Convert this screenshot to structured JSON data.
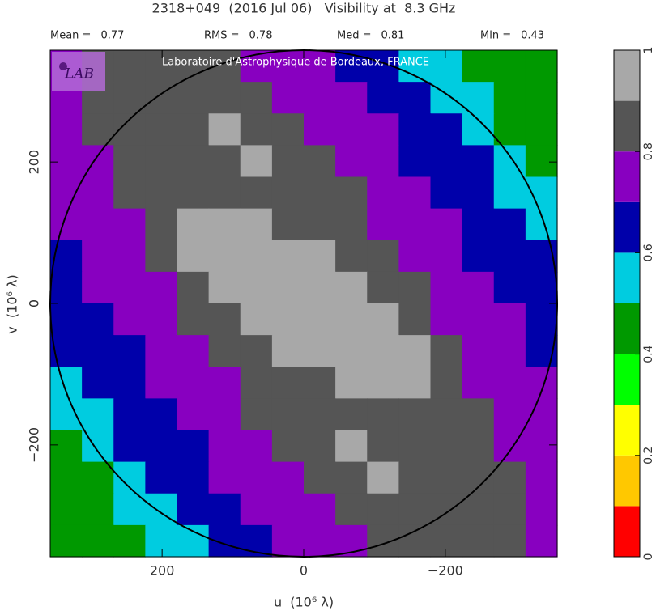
{
  "chart_data": {
    "type": "heatmap",
    "title": "2318+049  (2016 Jul 06)   Visibility at  8.3 GHz",
    "stats": [
      {
        "label": "Mean =",
        "value": 0.77
      },
      {
        "label": "RMS =",
        "value": 0.78
      },
      {
        "label": "Med =",
        "value": 0.81
      },
      {
        "label": "Min =",
        "value": 0.43
      }
    ],
    "watermark": "Laboratoire d'Astrophysique de Bordeaux, FRANCE",
    "logo_text": "LAB",
    "x_label": "u  (10⁶ λ)",
    "y_label": "v  (10⁶ λ)",
    "xlim": [
      358,
      -358
    ],
    "ylim": [
      -358,
      358
    ],
    "xticks": [
      200,
      0,
      {
        "value": -200,
        "label": "−200"
      }
    ],
    "yticks": [
      {
        "value": -200,
        "label": "−200"
      },
      0,
      200
    ],
    "levels": [
      0,
      0.1,
      0.2,
      0.3,
      0.4,
      0.5,
      0.6,
      0.7,
      0.8,
      0.9,
      1
    ],
    "colors": [
      "#ff0000",
      "#ffc800",
      "#ffff00",
      "#00ff00",
      "#009900",
      "#00cce0",
      "#0000aa",
      "#8800c0",
      "#555555",
      "#a8a8a8"
    ],
    "colorbar_ticks": [
      0,
      0.2,
      0.4,
      0.6,
      0.8,
      1
    ],
    "z": [
      [
        0.75,
        0.85,
        0.85,
        0.85,
        0.85,
        0.85,
        0.75,
        0.75,
        0.75,
        0.65,
        0.65,
        0.55,
        0.55,
        0.45,
        0.45,
        0.45
      ],
      [
        0.75,
        0.85,
        0.85,
        0.85,
        0.85,
        0.85,
        0.85,
        0.75,
        0.75,
        0.75,
        0.65,
        0.65,
        0.55,
        0.55,
        0.45,
        0.45
      ],
      [
        0.75,
        0.85,
        0.85,
        0.85,
        0.85,
        0.95,
        0.85,
        0.85,
        0.75,
        0.75,
        0.75,
        0.65,
        0.65,
        0.55,
        0.45,
        0.45
      ],
      [
        0.75,
        0.75,
        0.85,
        0.85,
        0.85,
        0.85,
        0.95,
        0.85,
        0.85,
        0.75,
        0.75,
        0.65,
        0.65,
        0.65,
        0.55,
        0.45
      ],
      [
        0.75,
        0.75,
        0.85,
        0.85,
        0.85,
        0.85,
        0.85,
        0.85,
        0.85,
        0.85,
        0.75,
        0.75,
        0.65,
        0.65,
        0.55,
        0.55
      ],
      [
        0.75,
        0.75,
        0.75,
        0.85,
        0.95,
        0.95,
        0.95,
        0.85,
        0.85,
        0.85,
        0.75,
        0.75,
        0.75,
        0.65,
        0.65,
        0.55
      ],
      [
        0.65,
        0.75,
        0.75,
        0.85,
        0.95,
        0.95,
        0.95,
        0.95,
        0.95,
        0.85,
        0.85,
        0.75,
        0.75,
        0.65,
        0.65,
        0.65
      ],
      [
        0.65,
        0.75,
        0.75,
        0.75,
        0.85,
        0.95,
        0.95,
        0.95,
        0.95,
        0.95,
        0.85,
        0.85,
        0.75,
        0.75,
        0.65,
        0.65
      ],
      [
        0.65,
        0.65,
        0.75,
        0.75,
        0.85,
        0.85,
        0.95,
        0.95,
        0.95,
        0.95,
        0.95,
        0.85,
        0.75,
        0.75,
        0.75,
        0.65
      ],
      [
        0.65,
        0.65,
        0.65,
        0.75,
        0.75,
        0.85,
        0.85,
        0.95,
        0.95,
        0.95,
        0.95,
        0.95,
        0.85,
        0.75,
        0.75,
        0.65
      ],
      [
        0.55,
        0.65,
        0.65,
        0.75,
        0.75,
        0.75,
        0.85,
        0.85,
        0.85,
        0.95,
        0.95,
        0.95,
        0.85,
        0.75,
        0.75,
        0.75
      ],
      [
        0.55,
        0.55,
        0.65,
        0.65,
        0.75,
        0.75,
        0.85,
        0.85,
        0.85,
        0.85,
        0.85,
        0.85,
        0.85,
        0.85,
        0.75,
        0.75
      ],
      [
        0.45,
        0.55,
        0.65,
        0.65,
        0.65,
        0.75,
        0.75,
        0.85,
        0.85,
        0.95,
        0.85,
        0.85,
        0.85,
        0.85,
        0.75,
        0.75
      ],
      [
        0.45,
        0.45,
        0.55,
        0.65,
        0.65,
        0.75,
        0.75,
        0.75,
        0.85,
        0.85,
        0.95,
        0.85,
        0.85,
        0.85,
        0.85,
        0.75
      ],
      [
        0.45,
        0.45,
        0.55,
        0.55,
        0.65,
        0.65,
        0.75,
        0.75,
        0.75,
        0.85,
        0.85,
        0.85,
        0.85,
        0.85,
        0.85,
        0.75
      ],
      [
        0.45,
        0.45,
        0.45,
        0.55,
        0.55,
        0.65,
        0.65,
        0.75,
        0.75,
        0.75,
        0.85,
        0.85,
        0.85,
        0.85,
        0.85,
        0.75
      ]
    ]
  }
}
